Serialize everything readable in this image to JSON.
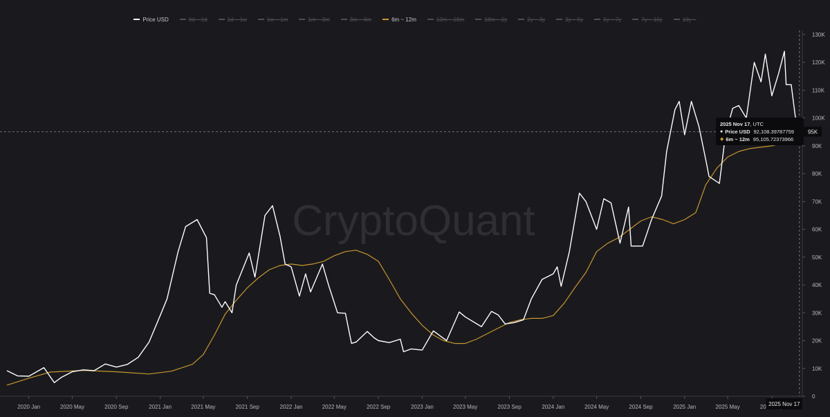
{
  "watermark": "CryptoQuant",
  "legend": [
    {
      "label": "Price USD",
      "color": "#ffffff",
      "enabled": true
    },
    {
      "label": "0d ~ 1d",
      "color": "#4d4d55",
      "enabled": false
    },
    {
      "label": "1d ~ 1w",
      "color": "#4d4d55",
      "enabled": false
    },
    {
      "label": "1w ~ 1m",
      "color": "#4d4d55",
      "enabled": false
    },
    {
      "label": "1m ~ 3m",
      "color": "#4d4d55",
      "enabled": false
    },
    {
      "label": "3m ~ 6m",
      "color": "#4d4d55",
      "enabled": false
    },
    {
      "label": "6m ~ 12m",
      "color": "#c8962e",
      "enabled": true
    },
    {
      "label": "12m ~ 18m",
      "color": "#4d4d55",
      "enabled": false
    },
    {
      "label": "18m ~ 2y",
      "color": "#4d4d55",
      "enabled": false
    },
    {
      "label": "2y ~ 3y",
      "color": "#4d4d55",
      "enabled": false
    },
    {
      "label": "3y ~ 5y",
      "color": "#4d4d55",
      "enabled": false
    },
    {
      "label": "5y ~ 7y",
      "color": "#4d4d55",
      "enabled": false
    },
    {
      "label": "7y ~ 10y",
      "color": "#4d4d55",
      "enabled": false
    },
    {
      "label": "10y ~",
      "color": "#4d4d55",
      "enabled": false
    }
  ],
  "tooltip": {
    "date": "2025 Nov 17",
    "tz": ", UTC",
    "rows": [
      {
        "marker": "●",
        "name": "Price USD",
        "value": "92,108.39787759",
        "color": "#ffffff"
      },
      {
        "marker": "◆",
        "name": "6m ~ 12m",
        "value": "95,105.72373966",
        "color": "#c8962e"
      }
    ]
  },
  "crosshair": {
    "price_label": "95K",
    "date_label": "2025 Nov 17",
    "price": 95105,
    "date": "2025-11-17"
  },
  "chart_data": {
    "type": "line",
    "xlim": [
      "2019-11-01",
      "2025-11-25"
    ],
    "ylim": [
      0,
      130000
    ],
    "grid": false,
    "legend_position": "top",
    "y_ticks": [
      0,
      10000,
      20000,
      30000,
      40000,
      50000,
      60000,
      70000,
      80000,
      90000,
      100000,
      110000,
      120000,
      130000
    ],
    "y_tick_labels": [
      "0",
      "10K",
      "20K",
      "30K",
      "40K",
      "50K",
      "60K",
      "70K",
      "80K",
      "90K",
      "100K",
      "110K",
      "120K",
      "130K"
    ],
    "x_ticks": [
      "2020-01-01",
      "2020-05-01",
      "2020-09-01",
      "2021-01-01",
      "2021-05-01",
      "2021-09-01",
      "2022-01-01",
      "2022-05-01",
      "2022-09-01",
      "2023-01-01",
      "2023-05-01",
      "2023-09-01",
      "2024-01-01",
      "2024-05-01",
      "2024-09-01",
      "2025-01-01",
      "2025-05-01",
      "2025-09-01"
    ],
    "x_tick_labels": [
      "2020 Jan",
      "2020 May",
      "2020 Sep",
      "2021 Jan",
      "2021 May",
      "2021 Sep",
      "2022 Jan",
      "2022 May",
      "2022 Sep",
      "2023 Jan",
      "2023 May",
      "2023 Sep",
      "2024 Jan",
      "2024 May",
      "2024 Sep",
      "2025 Jan",
      "2025 May",
      "2025 Sep"
    ],
    "series": [
      {
        "name": "Price USD",
        "color": "#ffffff",
        "x": [
          "2019-11-01",
          "2019-12-01",
          "2020-01-01",
          "2020-02-12",
          "2020-03-12",
          "2020-04-01",
          "2020-05-01",
          "2020-06-01",
          "2020-07-01",
          "2020-08-01",
          "2020-09-01",
          "2020-10-01",
          "2020-11-01",
          "2020-12-01",
          "2021-01-01",
          "2021-01-20",
          "2021-02-20",
          "2021-03-13",
          "2021-04-14",
          "2021-05-10",
          "2021-05-19",
          "2021-06-01",
          "2021-06-22",
          "2021-07-01",
          "2021-07-20",
          "2021-08-01",
          "2021-09-06",
          "2021-09-22",
          "2021-10-20",
          "2021-11-10",
          "2021-12-01",
          "2021-12-15",
          "2022-01-01",
          "2022-01-24",
          "2022-02-10",
          "2022-02-24",
          "2022-03-29",
          "2022-04-15",
          "2022-05-10",
          "2022-06-01",
          "2022-06-18",
          "2022-07-01",
          "2022-08-01",
          "2022-08-20",
          "2022-09-01",
          "2022-10-01",
          "2022-11-01",
          "2022-11-10",
          "2022-12-01",
          "2023-01-01",
          "2023-02-01",
          "2023-03-10",
          "2023-04-14",
          "2023-05-01",
          "2023-06-15",
          "2023-07-13",
          "2023-08-01",
          "2023-08-20",
          "2023-09-15",
          "2023-10-10",
          "2023-11-01",
          "2023-12-01",
          "2024-01-01",
          "2024-01-12",
          "2024-01-23",
          "2024-02-15",
          "2024-03-14",
          "2024-04-01",
          "2024-05-01",
          "2024-05-21",
          "2024-06-10",
          "2024-07-05",
          "2024-07-29",
          "2024-08-05",
          "2024-09-06",
          "2024-10-01",
          "2024-10-29",
          "2024-11-12",
          "2024-12-05",
          "2024-12-17",
          "2025-01-01",
          "2025-01-20",
          "2025-02-10",
          "2025-03-01",
          "2025-03-10",
          "2025-04-08",
          "2025-04-25",
          "2025-05-15",
          "2025-06-01",
          "2025-06-22",
          "2025-07-14",
          "2025-08-02",
          "2025-08-14",
          "2025-09-01",
          "2025-09-20",
          "2025-10-06",
          "2025-10-11",
          "2025-10-25",
          "2025-11-05",
          "2025-11-17"
        ],
        "values": [
          9200,
          7300,
          7200,
          10300,
          4900,
          6800,
          8800,
          9500,
          9200,
          11600,
          10500,
          11400,
          14000,
          19500,
          29000,
          35000,
          52000,
          61000,
          63500,
          57000,
          37000,
          36500,
          32000,
          34000,
          30000,
          40000,
          51500,
          42800,
          65000,
          68500,
          57500,
          47500,
          46500,
          36000,
          44000,
          37500,
          47500,
          40000,
          30000,
          29800,
          19000,
          19500,
          23300,
          21000,
          20000,
          19300,
          20500,
          16000,
          17000,
          16600,
          23500,
          20000,
          30300,
          28500,
          25000,
          30500,
          29200,
          26000,
          26500,
          27500,
          35000,
          42000,
          44000,
          46500,
          39500,
          52000,
          73000,
          70000,
          60000,
          71000,
          69500,
          55000,
          68000,
          54000,
          54000,
          63500,
          72000,
          88000,
          103000,
          106000,
          94000,
          106000,
          97000,
          85000,
          79000,
          76500,
          94000,
          103500,
          104500,
          100000,
          120000,
          113000,
          123000,
          108000,
          116000,
          124000,
          112000,
          112000,
          101000,
          92108
        ]
      },
      {
        "name": "6m ~ 12m",
        "color": "#c8962e",
        "x": [
          "2019-11-01",
          "2020-01-01",
          "2020-03-01",
          "2020-06-01",
          "2020-09-01",
          "2020-12-01",
          "2021-02-01",
          "2021-04-01",
          "2021-05-01",
          "2021-06-01",
          "2021-07-01",
          "2021-08-01",
          "2021-09-01",
          "2021-10-01",
          "2021-11-01",
          "2021-12-01",
          "2022-01-01",
          "2022-02-01",
          "2022-03-01",
          "2022-04-01",
          "2022-05-01",
          "2022-06-01",
          "2022-07-01",
          "2022-08-01",
          "2022-09-01",
          "2022-10-01",
          "2022-11-01",
          "2022-12-01",
          "2023-01-01",
          "2023-02-01",
          "2023-03-01",
          "2023-04-01",
          "2023-05-01",
          "2023-06-01",
          "2023-07-01",
          "2023-08-01",
          "2023-09-01",
          "2023-10-01",
          "2023-11-01",
          "2023-12-01",
          "2024-01-01",
          "2024-02-01",
          "2024-03-01",
          "2024-04-01",
          "2024-05-01",
          "2024-06-01",
          "2024-07-01",
          "2024-08-01",
          "2024-09-01",
          "2024-10-01",
          "2024-11-01",
          "2024-12-01",
          "2025-01-01",
          "2025-02-01",
          "2025-03-01",
          "2025-04-01",
          "2025-05-01",
          "2025-06-01",
          "2025-07-01",
          "2025-08-01",
          "2025-09-01",
          "2025-10-01",
          "2025-11-17"
        ],
        "values": [
          4000,
          6500,
          8700,
          9300,
          8800,
          8000,
          9000,
          11500,
          15000,
          22000,
          29500,
          34500,
          39000,
          42500,
          45500,
          47000,
          47500,
          47000,
          47500,
          48500,
          50500,
          52000,
          52500,
          51000,
          48500,
          42000,
          35000,
          30000,
          25500,
          22000,
          20000,
          19000,
          19000,
          20500,
          22500,
          24500,
          26500,
          27500,
          28000,
          28000,
          29000,
          33500,
          39000,
          44500,
          52000,
          55000,
          57000,
          60000,
          63000,
          64500,
          63500,
          62000,
          63500,
          66000,
          76000,
          82000,
          86000,
          88000,
          89000,
          89500,
          90000,
          91000,
          95105
        ]
      }
    ]
  }
}
